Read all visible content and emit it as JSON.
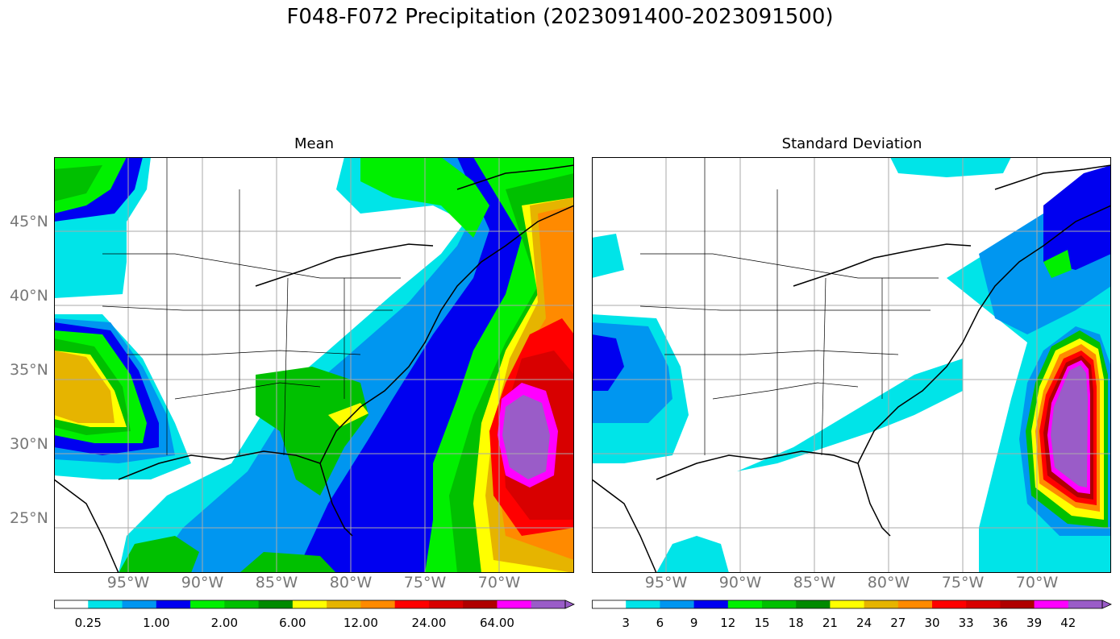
{
  "title": "F048-F072 Precipitation (2023091400-2023091500)",
  "panels": [
    {
      "title": "Mean",
      "colorbar": {
        "labels": [
          "0.25",
          "1.00",
          "2.00",
          "6.00",
          "12.00",
          "24.00",
          "64.00"
        ],
        "colors": [
          "#ffffff",
          "#00e4e8",
          "#0096f0",
          "#0000f0",
          "#00f000",
          "#00c000",
          "#008a00",
          "#ffff00",
          "#e6b400",
          "#ff8a00",
          "#ff0000",
          "#d80000",
          "#b00000",
          "#ff00ff",
          "#9a5cc8"
        ]
      }
    },
    {
      "title": "Standard Deviation",
      "colorbar": {
        "labels": [
          "3",
          "6",
          "9",
          "12",
          "15",
          "18",
          "21",
          "24",
          "27",
          "30",
          "33",
          "36",
          "39",
          "42"
        ],
        "colors": [
          "#ffffff",
          "#00e4e8",
          "#0096f0",
          "#0000f0",
          "#00f000",
          "#00c000",
          "#008a00",
          "#ffff00",
          "#e6b400",
          "#ff8a00",
          "#ff0000",
          "#d80000",
          "#b00000",
          "#ff00ff",
          "#9a5cc8"
        ]
      }
    }
  ],
  "lat_labels": [
    "45°N",
    "40°N",
    "35°N",
    "30°N",
    "25°N"
  ],
  "lon_labels": [
    "95°W",
    "90°W",
    "85°W",
    "80°W",
    "75°W",
    "70°W"
  ]
}
